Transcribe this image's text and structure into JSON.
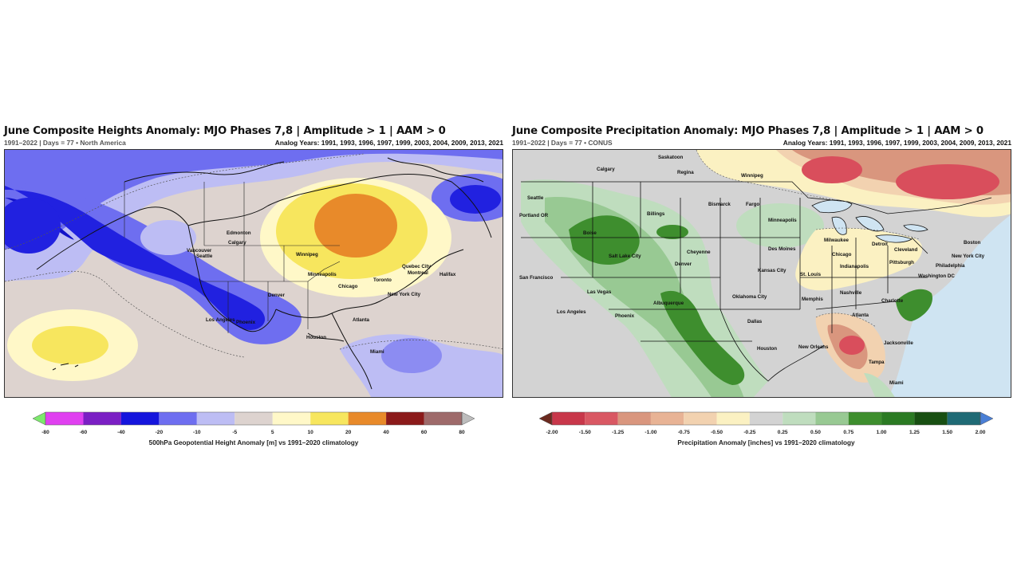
{
  "heights_panel": {
    "title": "June Composite Heights Anomaly: MJO Phases 7,8 | Amplitude > 1 | AAM > 0",
    "subtitle_left": "1991–2022 | Days = 77  •  North America",
    "subtitle_right": "Analog Years: 1991, 1993, 1996, 1997, 1999, 2003, 2004, 2009, 2013, 2021",
    "cities": [
      "Edmonton",
      "Calgary",
      "Vancouver",
      "Seattle",
      "Winnipeg",
      "Minneapolis",
      "Chicago",
      "Toronto",
      "Quebec City",
      "Montreal",
      "Halifax",
      "New York City",
      "Denver",
      "Los Angeles",
      "Phoenix",
      "Atlanta",
      "Houston",
      "Miami"
    ],
    "colorbar": {
      "tick_labels": [
        "-80",
        "-60",
        "-40",
        "-20",
        "-10",
        "-5",
        "5",
        "10",
        "20",
        "40",
        "60",
        "80"
      ],
      "colors": [
        "#7CE86C",
        "#E040F0",
        "#7B1FC4",
        "#1515DD",
        "#6E6EF0",
        "#BDBDF4",
        "#DDD3CF",
        "#FFF8C8",
        "#F7E65E",
        "#E88A2A",
        "#8B1A1A",
        "#9E6A6A",
        "#BDBDBD"
      ],
      "title": "500hPa Geopotential Height Anomaly [m] vs 1991–2020 climatology"
    },
    "colors": {
      "negative_strong": "#1212DD",
      "negative": "#6E6EF0",
      "negative_weak": "#BDBDF4",
      "neutral": "#DDD3CF",
      "positive_weak": "#FFF8C8",
      "positive": "#F7E65E",
      "positive_strong": "#E88A2A"
    }
  },
  "precip_panel": {
    "title": "June Composite Precipitation Anomaly: MJO Phases 7,8 | Amplitude > 1 | AAM > 0",
    "subtitle_left": "1991–2022 | Days = 77  •  CONUS",
    "subtitle_right": "Analog Years: 1991, 1993, 1996, 1997, 1999, 2003, 2004, 2009, 2013, 2021",
    "cities": [
      "Calgary",
      "Saskatoon",
      "Regina",
      "Winnipeg",
      "Seattle",
      "Portland OR",
      "Billings",
      "Bismarck",
      "Fargo",
      "Minneapolis",
      "Boise",
      "Salt Lake City",
      "Cheyenne",
      "Denver",
      "Milwaukee",
      "Detroit",
      "Boston",
      "Des Moines",
      "Chicago",
      "Cleveland",
      "New York City",
      "San Francisco",
      "Indianapolis",
      "Pittsburgh",
      "Philadelphia",
      "Kansas City",
      "St. Louis",
      "Washington DC",
      "Las Vegas",
      "Oklahoma City",
      "Memphis",
      "Nashville",
      "Charlotte",
      "Los Angeles",
      "Phoenix",
      "Albuquerque",
      "Atlanta",
      "Dallas",
      "Houston",
      "New Orleans",
      "Jacksonville",
      "Tampa",
      "Miami"
    ],
    "colorbar": {
      "tick_labels": [
        "-2.00",
        "-1.50",
        "-1.25",
        "-1.00",
        "-0.75",
        "-0.50",
        "-0.25",
        "0.25",
        "0.50",
        "0.75",
        "1.00",
        "1.25",
        "1.50",
        "2.00"
      ],
      "colors": [
        "#6B2A1F",
        "#C8374A",
        "#D95863",
        "#D9967E",
        "#E8B395",
        "#F2D2B0",
        "#FBF1C2",
        "#D3D3D3",
        "#BFDDBE",
        "#98C993",
        "#3E8E2E",
        "#2B7A23",
        "#184F12",
        "#1F6A75",
        "#4A7FD6"
      ],
      "title": "Precipitation Anomaly [inches] vs 1991–2020 climatology"
    },
    "colors": {
      "dry_strong": "#D94E5C",
      "dry": "#E2A083",
      "dry_weak": "#FBF1C2",
      "neutral": "#D3D3D3",
      "wet_weak": "#BFDDBE",
      "wet": "#98C993",
      "wet_strong": "#3E8E2E",
      "ocean": "#CFE4F2"
    }
  }
}
